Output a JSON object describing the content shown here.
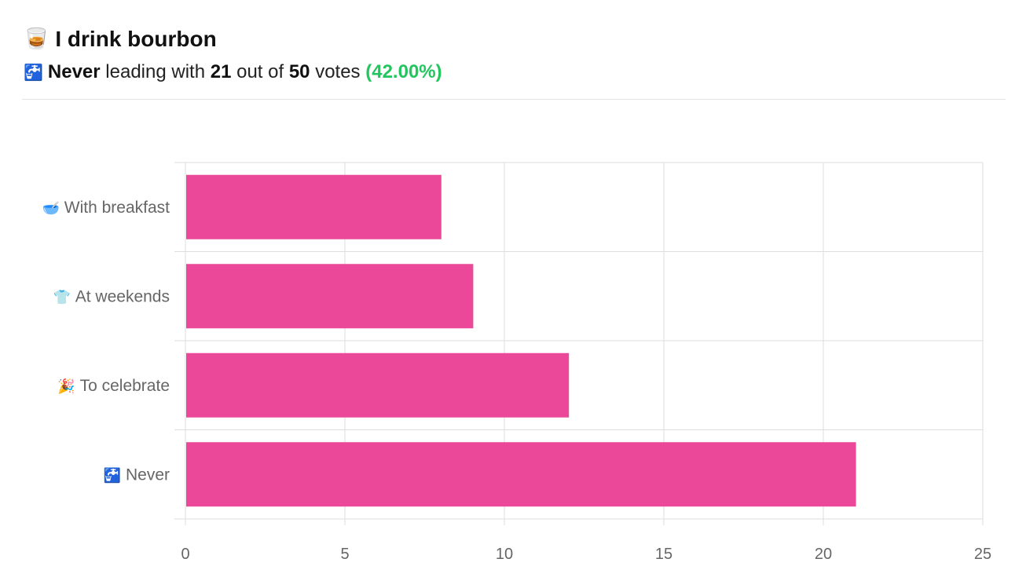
{
  "header": {
    "title_icon": "tumbler-glass-icon",
    "title_emoji": "🥃",
    "title": "I drink bourbon",
    "summary_icon": "potable-water-icon",
    "summary_emoji": "🚰",
    "leader": "Never",
    "text_leading_with": "leading with",
    "leader_votes": "21",
    "text_out_of": "out of",
    "total_votes": "50",
    "text_votes": "votes",
    "percent": "(42.00%)",
    "percent_color": "#22c55e"
  },
  "chart_data": {
    "type": "bar",
    "orientation": "horizontal",
    "categories": [
      "With breakfast",
      "At weekends",
      "To celebrate",
      "Never"
    ],
    "category_emojis": [
      "🥣",
      "👕",
      "🎉",
      "🚰"
    ],
    "category_icons": [
      "bowl-with-spoon-icon",
      "t-shirt-icon",
      "party-popper-icon",
      "potable-water-icon"
    ],
    "values": [
      8,
      9,
      12,
      21
    ],
    "xlim": [
      0,
      25
    ],
    "x_ticks": [
      0,
      5,
      10,
      15,
      20,
      25
    ],
    "bar_color": "#ec4899",
    "grid": true,
    "xlabel": "",
    "ylabel": "",
    "legend": "none"
  }
}
